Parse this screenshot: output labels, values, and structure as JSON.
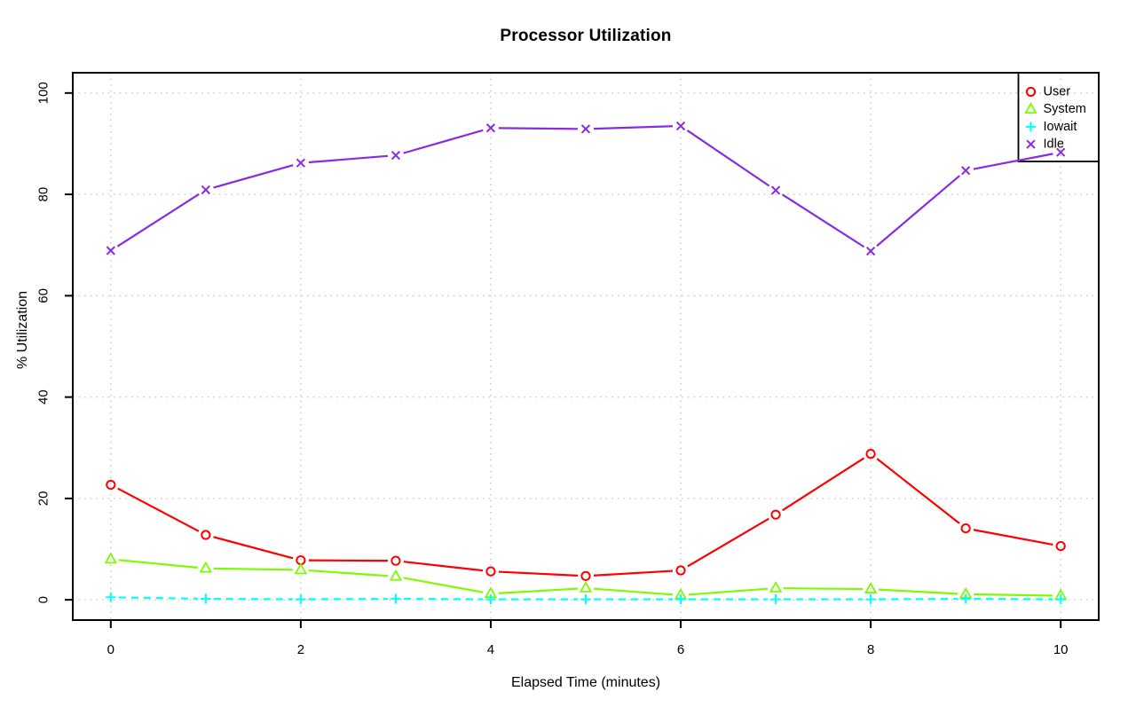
{
  "chart_data": {
    "type": "line",
    "title": "Processor Utilization",
    "xlabel": "Elapsed Time (minutes)",
    "ylabel": "% Utilization",
    "x": [
      0,
      1,
      2,
      3,
      4,
      5,
      6,
      7,
      8,
      9,
      10
    ],
    "xlim": [
      0,
      10
    ],
    "ylim": [
      0,
      100
    ],
    "x_ticks": [
      0,
      2,
      4,
      6,
      8,
      10
    ],
    "y_ticks": [
      0,
      20,
      40,
      60,
      80,
      100
    ],
    "grid": true,
    "grid_style": "dotted",
    "legend_position": "top-right",
    "colors": {
      "background": "#ffffff",
      "grid": "#cbcbcb",
      "axis": "#000000"
    },
    "series": [
      {
        "name": "User",
        "color": "#ff0000",
        "marker": "circle",
        "line_style": "solid",
        "values": [
          22.7,
          12.8,
          7.8,
          7.7,
          5.6,
          4.7,
          5.8,
          16.8,
          28.8,
          14.1,
          10.6
        ]
      },
      {
        "name": "System",
        "color": "#7cfc00",
        "marker": "triangle",
        "line_style": "solid",
        "values": [
          8.0,
          6.2,
          5.9,
          4.6,
          1.2,
          2.3,
          0.9,
          2.3,
          2.1,
          1.1,
          0.8
        ]
      },
      {
        "name": "Iowait",
        "color": "#00ffff",
        "marker": "plus",
        "line_style": "dashed",
        "values": [
          0.5,
          0.2,
          0.1,
          0.2,
          0.1,
          0.1,
          0.1,
          0.1,
          0.1,
          0.2,
          0.1
        ]
      },
      {
        "name": "Idle",
        "color": "#8a2be2",
        "marker": "x",
        "line_style": "solid",
        "values": [
          68.9,
          80.9,
          86.2,
          87.7,
          93.1,
          92.9,
          93.5,
          80.8,
          68.8,
          84.7,
          88.3
        ]
      }
    ]
  }
}
